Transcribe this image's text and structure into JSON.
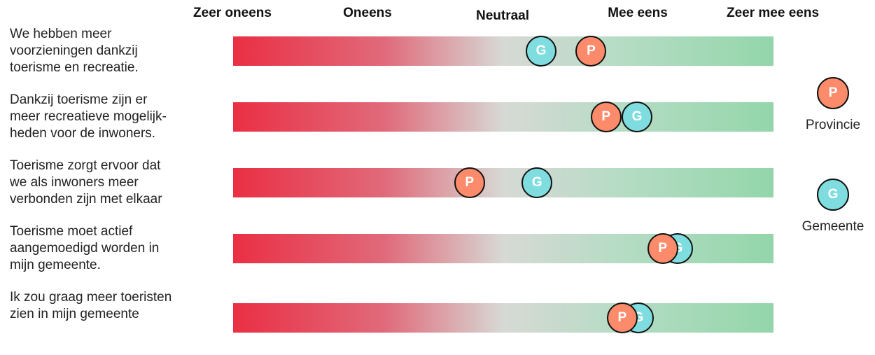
{
  "chart_data": {
    "type": "dot",
    "scale": [
      "Zeer oneens",
      "Oneens",
      "Neutraal",
      "Mee eens",
      "Zeer mee eens"
    ],
    "ylim": [
      1,
      5
    ],
    "series": [
      {
        "name": "Provincie",
        "marker_letter": "P",
        "color": "#fb8b6b"
      },
      {
        "name": "Gemeente",
        "marker_letter": "G",
        "color": "#7fdde0"
      }
    ],
    "statements": [
      {
        "text": "We hebben meer\nvoorzieningen dankzij\ntoerisme en recreatie.",
        "values": {
          "Provincie": 3.65,
          "Gemeente": 3.28
        }
      },
      {
        "text": "Dankzij toerisme zijn er\nmeer recreatieve mogelijk-\nheden voor de inwoners.",
        "values": {
          "Provincie": 3.76,
          "Gemeente": 3.99
        }
      },
      {
        "text": "Toerisme zorgt ervoor dat\nwe als inwoners meer\nverbonden zijn met elkaar",
        "values": {
          "Provincie": 2.75,
          "Gemeente": 3.25
        }
      },
      {
        "text": "Toerisme moet actief\naangemoedigd worden in\nmijn gemeente.",
        "values": {
          "Provincie": 4.18,
          "Gemeente": 4.29
        }
      },
      {
        "text": "Ik zou graag meer toeristen\nzien in mijn gemeente",
        "values": {
          "Provincie": 3.88,
          "Gemeente": 4.0
        }
      }
    ]
  },
  "legend": {
    "provincie": {
      "letter": "P",
      "label": "Provincie"
    },
    "gemeente": {
      "letter": "G",
      "label": "Gemeente"
    }
  }
}
